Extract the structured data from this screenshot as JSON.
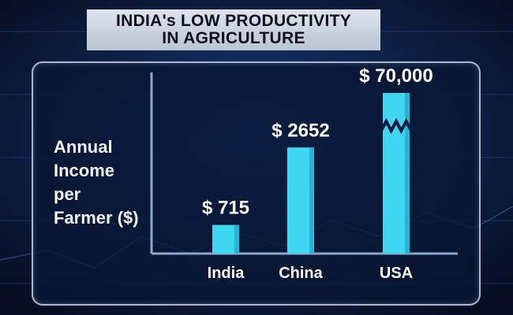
{
  "title": {
    "line1": "INDIA's LOW PRODUCTIVITY",
    "line2": "IN AGRICULTURE"
  },
  "ylabel_lines": [
    "Annual",
    "Income",
    "per",
    "Farmer ($)"
  ],
  "colors": {
    "bar": "#3fd6f2",
    "bar_dark": "#1aa8cc",
    "axis": "#8fa6cc",
    "panel_border": "#a9b8cf"
  },
  "chart_data": {
    "type": "bar",
    "title": "INDIA's LOW PRODUCTIVITY IN AGRICULTURE",
    "ylabel": "Annual Income per Farmer ($)",
    "xlabel": "",
    "categories": [
      "India",
      "China",
      "USA"
    ],
    "values": [
      715,
      2652,
      70000
    ],
    "value_labels": [
      "$ 715",
      "$ 2652",
      "$ 70,000"
    ],
    "broken_axis_bar": "USA",
    "grid": false
  }
}
